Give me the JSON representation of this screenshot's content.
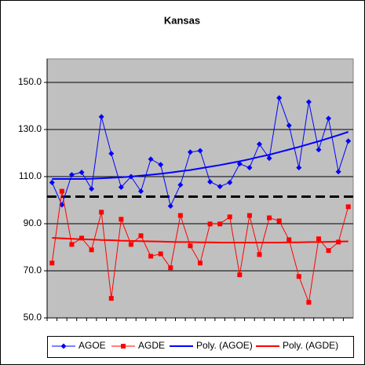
{
  "chart_data": {
    "type": "line",
    "title": "Kansas",
    "categories": [
      null,
      null,
      null,
      null,
      null,
      null,
      null,
      null,
      null,
      null,
      null,
      null,
      null,
      null,
      null,
      null,
      null,
      null,
      null,
      null,
      null,
      null,
      null,
      null,
      null,
      null,
      null,
      null,
      null,
      null,
      null
    ],
    "series": [
      {
        "name": "AGOE",
        "color": "#0000ff",
        "marker": "diamond",
        "values": [
          107.5,
          98,
          110.8,
          111.8,
          104.8,
          135.4,
          119.8,
          105.5,
          110,
          103.8,
          117.4,
          115.1,
          97.5,
          106.5,
          120.4,
          121,
          107.8,
          105.8,
          107.5,
          115.4,
          113.8,
          123.8,
          117.8,
          143.4,
          131.7,
          113.8,
          141.7,
          121.4,
          134.7,
          112.1,
          125.1
        ]
      },
      {
        "name": "AGDE",
        "color": "#ff0000",
        "marker": "square",
        "values": [
          73.3,
          103.8,
          81.2,
          83.9,
          78.9,
          94.9,
          58.3,
          91.9,
          81.2,
          84.9,
          76.2,
          77.2,
          71.3,
          93.5,
          80.6,
          73.3,
          89.9,
          89.9,
          92.9,
          68.3,
          93.5,
          76.9,
          92.5,
          91.2,
          83.2,
          67.6,
          56.6,
          83.6,
          78.6,
          82.2,
          97.2
        ]
      },
      {
        "name": "Poly. (AGOE)",
        "color": "#0000ff",
        "marker": null,
        "values": [
          109.0,
          109.0,
          109.0,
          109.0,
          109.1,
          109.3,
          109.5,
          109.7,
          110.0,
          110.4,
          110.8,
          111.2,
          111.7,
          112.3,
          112.8,
          113.5,
          114.2,
          114.9,
          115.7,
          116.5,
          117.4,
          118.4,
          119.3,
          120.4,
          121.5,
          122.6,
          123.8,
          125.0,
          126.3,
          127.6,
          129.0
        ]
      },
      {
        "name": "Poly. (AGDE)",
        "color": "#ff0000",
        "marker": null,
        "values": [
          84.0,
          83.8,
          83.6,
          83.4,
          83.3,
          83.1,
          83.0,
          82.8,
          82.7,
          82.6,
          82.5,
          82.4,
          82.3,
          82.2,
          82.2,
          82.1,
          82.1,
          82.0,
          82.0,
          82.0,
          82.0,
          82.0,
          82.0,
          82.0,
          82.1,
          82.1,
          82.2,
          82.2,
          82.3,
          82.4,
          82.5
        ]
      }
    ],
    "reference_line": {
      "value": 101.5,
      "color": "#000000",
      "dashed": true
    },
    "ylim": [
      50,
      160
    ],
    "yticks": [
      {
        "value": 50,
        "label": "50.0"
      },
      {
        "value": 70,
        "label": "70.0"
      },
      {
        "value": 90,
        "label": "90.0"
      },
      {
        "value": 110,
        "label": "110.0"
      },
      {
        "value": 130,
        "label": "130.0"
      },
      {
        "value": 150,
        "label": "150.0"
      }
    ],
    "grid": true,
    "legend": "bottom",
    "plot_background": "#c0c0c0"
  }
}
